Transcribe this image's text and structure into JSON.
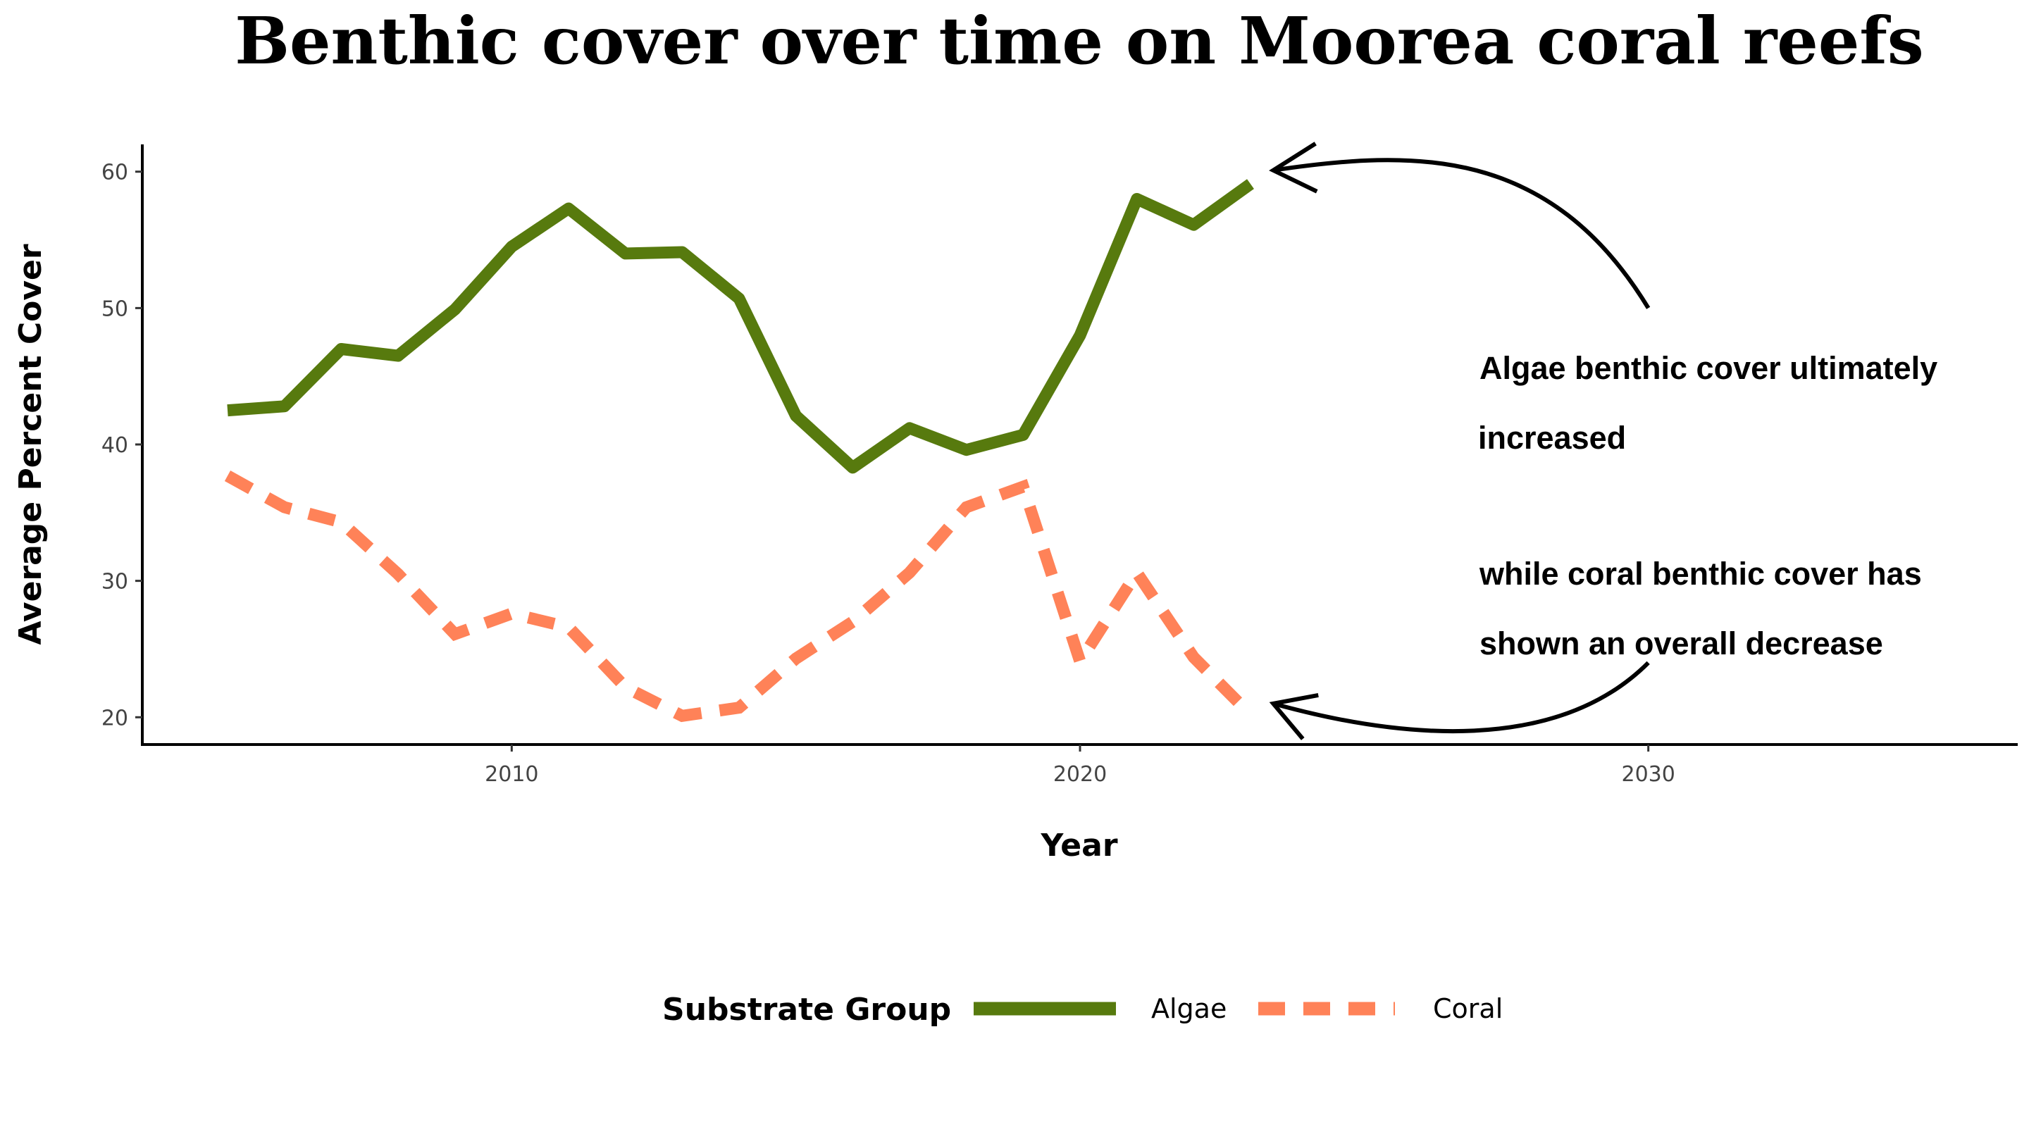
{
  "chart_data": {
    "type": "line",
    "title": "Benthic cover over time on Moorea coral reefs",
    "xlabel": "Year",
    "ylabel": "Average Percent Cover",
    "xlim": [
      2003.5,
      2036.5
    ],
    "ylim": [
      18,
      62
    ],
    "x_ticks": [
      2010,
      2020,
      2030
    ],
    "y_ticks": [
      20,
      30,
      40,
      50,
      60
    ],
    "grid": false,
    "legend": {
      "title": "Substrate Group",
      "position": "bottom"
    },
    "series": [
      {
        "name": "Algae",
        "color": "#577A0E",
        "dash": "solid",
        "x": [
          2005,
          2006,
          2007,
          2008,
          2009,
          2010,
          2011,
          2012,
          2013,
          2014,
          2015,
          2016,
          2017,
          2018,
          2019,
          2020,
          2021,
          2022,
          2023
        ],
        "values": [
          42.5,
          42.8,
          47.0,
          46.5,
          49.9,
          54.5,
          57.3,
          54.0,
          54.1,
          50.7,
          42.1,
          38.3,
          41.2,
          39.6,
          40.7,
          48.0,
          58.0,
          56.1,
          59.1
        ]
      },
      {
        "name": "Coral",
        "color": "#FF8258",
        "dash": "dashed",
        "x": [
          2005,
          2006,
          2007,
          2008,
          2009,
          2010,
          2011,
          2012,
          2013,
          2014,
          2015,
          2016,
          2017,
          2018,
          2019,
          2020,
          2021,
          2022,
          2023
        ],
        "values": [
          37.7,
          35.4,
          34.3,
          30.5,
          26.1,
          27.6,
          26.6,
          22.2,
          20.1,
          20.7,
          24.3,
          27.0,
          30.6,
          35.4,
          36.9,
          24.1,
          30.6,
          24.4,
          20.2
        ]
      }
    ],
    "annotations": {
      "algae_lines": [
        "Algae benthic cover ultimately",
        "increased"
      ],
      "coral_lines": [
        "while coral benthic cover has",
        "shown an overall decrease"
      ],
      "arrows": [
        {
          "from": [
            2030,
            50
          ],
          "to": [
            2023.4,
            60.1
          ],
          "bend": "up"
        },
        {
          "from": [
            2030,
            24
          ],
          "to": [
            2023.4,
            21.0
          ],
          "bend": "down"
        }
      ]
    }
  }
}
